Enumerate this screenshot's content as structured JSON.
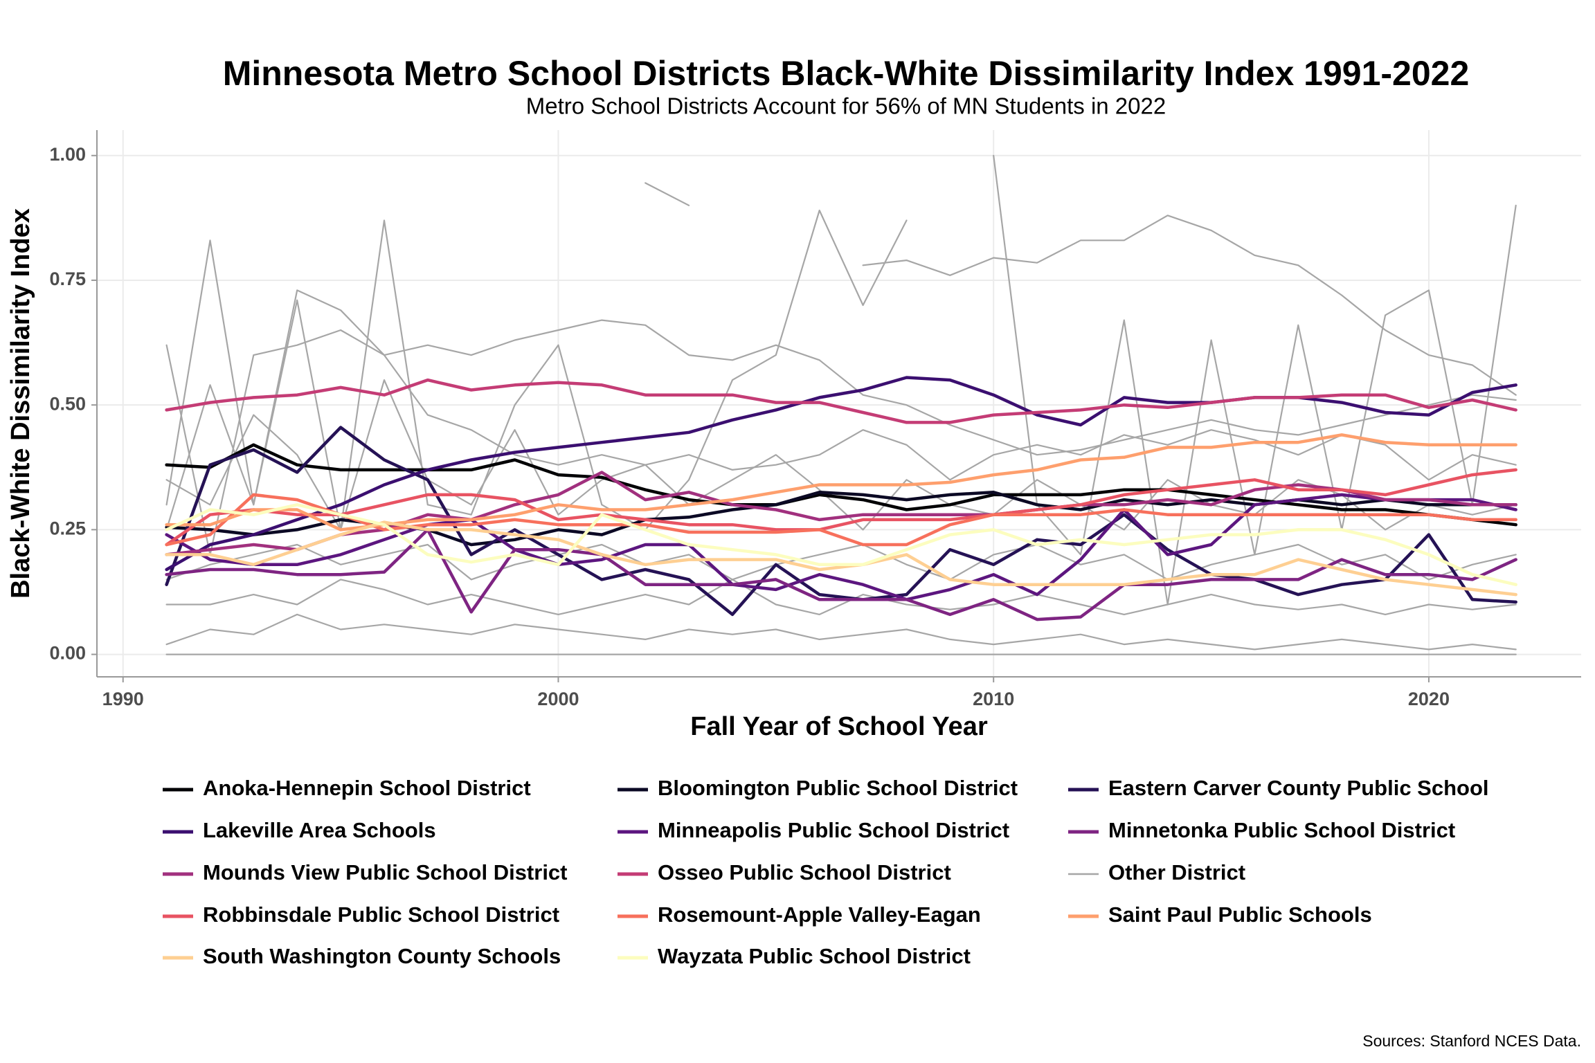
{
  "chart_data": {
    "type": "line",
    "title": "Minnesota Metro School Districts Black-White Dissimilarity Index 1991-2022",
    "subtitle": "Metro School Districts Account for 56% of MN Students in 2022",
    "x_label": "Fall Year of School Year",
    "y_label": "Black-White Dissimilarity Index",
    "source": "Sources: Stanford NCES Data.",
    "grid": true,
    "legend": "bottom",
    "xlim": [
      1989.4,
      2023.5
    ],
    "xticks": [
      1990,
      2000,
      2010,
      2020
    ],
    "ylim": [
      -0.045,
      1.051
    ],
    "yticks": [
      {
        "value": 0,
        "label": "0.00"
      },
      {
        "value": 0.25,
        "label": "0.25"
      },
      {
        "value": 0.5,
        "label": "0.50"
      },
      {
        "value": 0.75,
        "label": "0.75"
      },
      {
        "value": 1,
        "label": "1.00"
      }
    ],
    "x": [
      1991,
      1992,
      1993,
      1994,
      1995,
      1996,
      1997,
      1998,
      1999,
      2000,
      2001,
      2002,
      2003,
      2004,
      2005,
      2006,
      2007,
      2008,
      2009,
      2010,
      2011,
      2012,
      2013,
      2014,
      2015,
      2016,
      2017,
      2018,
      2019,
      2020,
      2021,
      2022
    ],
    "series": [
      {
        "name": "Anoka-Hennepin School District",
        "color": "#000004",
        "values": [
          0.38,
          0.375,
          0.42,
          0.38,
          0.37,
          0.37,
          0.37,
          0.37,
          0.39,
          0.36,
          0.355,
          0.33,
          0.31,
          0.3,
          0.3,
          0.32,
          0.31,
          0.29,
          0.3,
          0.32,
          0.32,
          0.32,
          0.33,
          0.33,
          0.32,
          0.31,
          0.3,
          0.29,
          0.29,
          0.28,
          0.27,
          0.26
        ]
      },
      {
        "name": "Bloomington Public School District",
        "color": "#0b0924",
        "values": [
          0.255,
          0.25,
          0.24,
          0.25,
          0.27,
          0.26,
          0.25,
          0.22,
          0.23,
          0.25,
          0.24,
          0.27,
          0.275,
          0.29,
          0.3,
          0.325,
          0.32,
          0.31,
          0.32,
          0.325,
          0.3,
          0.29,
          0.31,
          0.3,
          0.31,
          0.3,
          0.31,
          0.3,
          0.31,
          0.3,
          0.3,
          0.3
        ]
      },
      {
        "name": "Eastern Carver County Public School",
        "color": "#251255",
        "values": [
          0.14,
          0.38,
          0.41,
          0.365,
          0.455,
          0.39,
          0.35,
          0.2,
          0.25,
          0.2,
          0.15,
          0.17,
          0.15,
          0.08,
          0.18,
          0.12,
          0.11,
          0.12,
          0.21,
          0.18,
          0.23,
          0.22,
          0.28,
          0.21,
          0.16,
          0.15,
          0.12,
          0.14,
          0.15,
          0.24,
          0.11,
          0.105
        ]
      },
      {
        "name": "Lakeville Area Schools",
        "color": "#3b0f70",
        "values": [
          0.17,
          0.22,
          0.24,
          0.27,
          0.3,
          0.34,
          0.37,
          0.39,
          0.405,
          0.415,
          0.425,
          0.435,
          0.445,
          0.47,
          0.49,
          0.515,
          0.53,
          0.555,
          0.55,
          0.52,
          0.48,
          0.46,
          0.515,
          0.505,
          0.505,
          0.515,
          0.515,
          0.505,
          0.485,
          0.48,
          0.525,
          0.54
        ]
      },
      {
        "name": "Minneapolis Public School District",
        "color": "#5c167f",
        "values": [
          0.24,
          0.19,
          0.18,
          0.18,
          0.2,
          0.23,
          0.26,
          0.27,
          0.21,
          0.18,
          0.19,
          0.22,
          0.22,
          0.14,
          0.13,
          0.16,
          0.14,
          0.11,
          0.13,
          0.16,
          0.12,
          0.19,
          0.29,
          0.2,
          0.22,
          0.3,
          0.31,
          0.32,
          0.31,
          0.31,
          0.31,
          0.29
        ]
      },
      {
        "name": "Minnetonka Public School District",
        "color": "#7e2482",
        "values": [
          0.16,
          0.17,
          0.17,
          0.16,
          0.16,
          0.165,
          0.25,
          0.085,
          0.21,
          0.21,
          0.2,
          0.14,
          0.14,
          0.14,
          0.15,
          0.11,
          0.11,
          0.11,
          0.08,
          0.11,
          0.07,
          0.075,
          0.14,
          0.14,
          0.15,
          0.15,
          0.15,
          0.19,
          0.16,
          0.16,
          0.15,
          0.19
        ]
      },
      {
        "name": "Mounds View Public School District",
        "color": "#a1307e",
        "values": [
          0.2,
          0.21,
          0.22,
          0.21,
          0.24,
          0.25,
          0.28,
          0.27,
          0.3,
          0.32,
          0.365,
          0.31,
          0.325,
          0.3,
          0.29,
          0.27,
          0.28,
          0.28,
          0.28,
          0.28,
          0.29,
          0.3,
          0.3,
          0.31,
          0.3,
          0.33,
          0.34,
          0.33,
          0.31,
          0.31,
          0.3,
          0.3
        ]
      },
      {
        "name": "Osseo Public School District",
        "color": "#c43c75",
        "values": [
          0.49,
          0.505,
          0.515,
          0.52,
          0.535,
          0.52,
          0.55,
          0.53,
          0.54,
          0.545,
          0.54,
          0.52,
          0.52,
          0.52,
          0.505,
          0.505,
          0.485,
          0.465,
          0.465,
          0.48,
          0.485,
          0.49,
          0.5,
          0.495,
          0.505,
          0.515,
          0.515,
          0.52,
          0.52,
          0.495,
          0.51,
          0.49
        ]
      },
      {
        "name": "Other District",
        "color": "#a6a6a6",
        "lines": [
          [
            0.62,
            0.2,
            0.6,
            0.62,
            0.65,
            0.6,
            0.62,
            0.6,
            0.63,
            0.65,
            0.67,
            0.66,
            0.6,
            0.59,
            0.62,
            0.59,
            0.52,
            0.5,
            0.46,
            0.43,
            0.4,
            0.41,
            0.43,
            0.45,
            0.47,
            0.45,
            0.44,
            0.46,
            0.48,
            0.5,
            0.52,
            0.51
          ],
          [
            0.3,
            0.83,
            0.3,
            0.71,
            0.25,
            0.87,
            0.3,
            0.28,
            0.5,
            0.62,
            0.3,
            0.25,
            0.35,
            0.55,
            0.6,
            0.89,
            0.7,
            0.87,
            null,
            1,
            0.3,
            0.2,
            0.67,
            0.1,
            0.63,
            0.2,
            0.66,
            0.25,
            0.68,
            0.73,
            0.3,
            0.9
          ],
          [
            0.1,
            0.1,
            0.12,
            0.1,
            0.15,
            0.13,
            0.1,
            0.12,
            0.1,
            0.08,
            0.1,
            0.12,
            0.1,
            0.15,
            0.1,
            0.08,
            0.12,
            0.1,
            0.09,
            0.1,
            0.12,
            0.1,
            0.08,
            0.1,
            0.12,
            0.1,
            0.09,
            0.1,
            0.08,
            0.1,
            0.09,
            0.1
          ],
          [
            0.02,
            0.05,
            0.04,
            0.08,
            0.05,
            0.06,
            0.05,
            0.04,
            0.06,
            0.05,
            0.04,
            0.03,
            0.05,
            0.04,
            0.05,
            0.03,
            0.04,
            0.05,
            0.03,
            0.02,
            0.03,
            0.04,
            0.02,
            0.03,
            0.02,
            0.01,
            0.02,
            0.03,
            0.02,
            0.01,
            0.02,
            0.01
          ],
          [
            null,
            null,
            null,
            null,
            null,
            null,
            null,
            null,
            null,
            null,
            null,
            0.945,
            0.9,
            null,
            null,
            null,
            null,
            null,
            null,
            null,
            null,
            null,
            null,
            null,
            null,
            null,
            null,
            null,
            null,
            null,
            null,
            null
          ],
          [
            null,
            null,
            null,
            null,
            null,
            null,
            null,
            null,
            null,
            null,
            null,
            null,
            null,
            null,
            null,
            null,
            0.78,
            0.79,
            0.76,
            0.795,
            0.785,
            0.83,
            0.83,
            0.88,
            0.85,
            0.8,
            0.78,
            0.72,
            0.65,
            0.6,
            0.58,
            0.52
          ],
          [
            0.25,
            0.54,
            0.3,
            0.73,
            0.69,
            0.6,
            0.48,
            0.45,
            0.4,
            0.38,
            0.4,
            0.38,
            0.4,
            0.37,
            0.38,
            0.4,
            0.45,
            0.42,
            0.35,
            0.4,
            0.42,
            0.4,
            0.44,
            0.42,
            0.45,
            0.43,
            0.4,
            0.44,
            0.42,
            0.35,
            0.4,
            0.38
          ],
          [
            0.15,
            0.18,
            0.2,
            0.22,
            0.18,
            0.2,
            0.22,
            0.15,
            0.18,
            0.2,
            0.22,
            0.18,
            0.2,
            0.15,
            0.18,
            0.2,
            0.22,
            0.18,
            0.15,
            0.2,
            0.22,
            0.18,
            0.2,
            0.15,
            0.18,
            0.2,
            0.22,
            0.18,
            0.2,
            0.15,
            0.18,
            0.2
          ],
          [
            0,
            0,
            0,
            0,
            0,
            0,
            0,
            0,
            0,
            0,
            0,
            0,
            0,
            0,
            0,
            0,
            0,
            0,
            0,
            0,
            0,
            0,
            0,
            0,
            0,
            0,
            0,
            0,
            0,
            0,
            0,
            0
          ],
          [
            0.35,
            0.3,
            0.48,
            0.4,
            0.25,
            0.55,
            0.35,
            0.3,
            0.45,
            0.28,
            0.35,
            0.38,
            0.3,
            0.35,
            0.4,
            0.33,
            0.25,
            0.35,
            0.3,
            0.28,
            0.35,
            0.3,
            0.25,
            0.35,
            0.3,
            0.28,
            0.35,
            0.32,
            0.25,
            0.3,
            0.28,
            0.3
          ]
        ]
      },
      {
        "name": "Robbinsdale Public School District",
        "color": "#e85362",
        "values": [
          0.22,
          0.28,
          0.29,
          0.28,
          0.28,
          0.3,
          0.32,
          0.32,
          0.31,
          0.27,
          0.28,
          0.27,
          0.26,
          0.26,
          0.25,
          0.25,
          0.27,
          0.27,
          0.27,
          0.28,
          0.29,
          0.3,
          0.32,
          0.33,
          0.34,
          0.35,
          0.33,
          0.33,
          0.32,
          0.34,
          0.36,
          0.37
        ]
      },
      {
        "name": "Rosemount-Apple Valley-Eagan",
        "color": "#f7705c",
        "values": [
          0.22,
          0.24,
          0.32,
          0.31,
          0.28,
          0.25,
          0.26,
          0.26,
          0.27,
          0.26,
          0.26,
          0.26,
          0.245,
          0.245,
          0.245,
          0.25,
          0.22,
          0.22,
          0.26,
          0.28,
          0.28,
          0.28,
          0.29,
          0.28,
          0.28,
          0.28,
          0.28,
          0.28,
          0.28,
          0.28,
          0.27,
          0.27
        ]
      },
      {
        "name": "Saint Paul Public Schools",
        "color": "#fe9f6d",
        "values": [
          0.26,
          0.26,
          0.29,
          0.29,
          0.25,
          0.26,
          0.27,
          0.27,
          0.28,
          0.3,
          0.29,
          0.29,
          0.3,
          0.31,
          0.325,
          0.34,
          0.34,
          0.34,
          0.345,
          0.36,
          0.37,
          0.39,
          0.395,
          0.415,
          0.415,
          0.425,
          0.425,
          0.44,
          0.425,
          0.42,
          0.42,
          0.42
        ]
      },
      {
        "name": "South Washington County Schools",
        "color": "#fecf92",
        "values": [
          0.2,
          0.2,
          0.18,
          0.21,
          0.24,
          0.265,
          0.25,
          0.25,
          0.24,
          0.23,
          0.2,
          0.18,
          0.19,
          0.19,
          0.19,
          0.17,
          0.18,
          0.2,
          0.15,
          0.14,
          0.14,
          0.14,
          0.14,
          0.15,
          0.16,
          0.16,
          0.19,
          0.17,
          0.15,
          0.14,
          0.13,
          0.12
        ]
      },
      {
        "name": "Wayzata Public School District",
        "color": "#fcfdbf",
        "values": [
          0.25,
          0.29,
          0.28,
          0.3,
          0.28,
          0.26,
          0.2,
          0.185,
          0.2,
          0.18,
          0.28,
          0.25,
          0.22,
          0.21,
          0.2,
          0.18,
          0.18,
          0.21,
          0.24,
          0.25,
          0.22,
          0.23,
          0.22,
          0.23,
          0.24,
          0.24,
          0.25,
          0.25,
          0.23,
          0.2,
          0.16,
          0.14
        ]
      }
    ]
  }
}
